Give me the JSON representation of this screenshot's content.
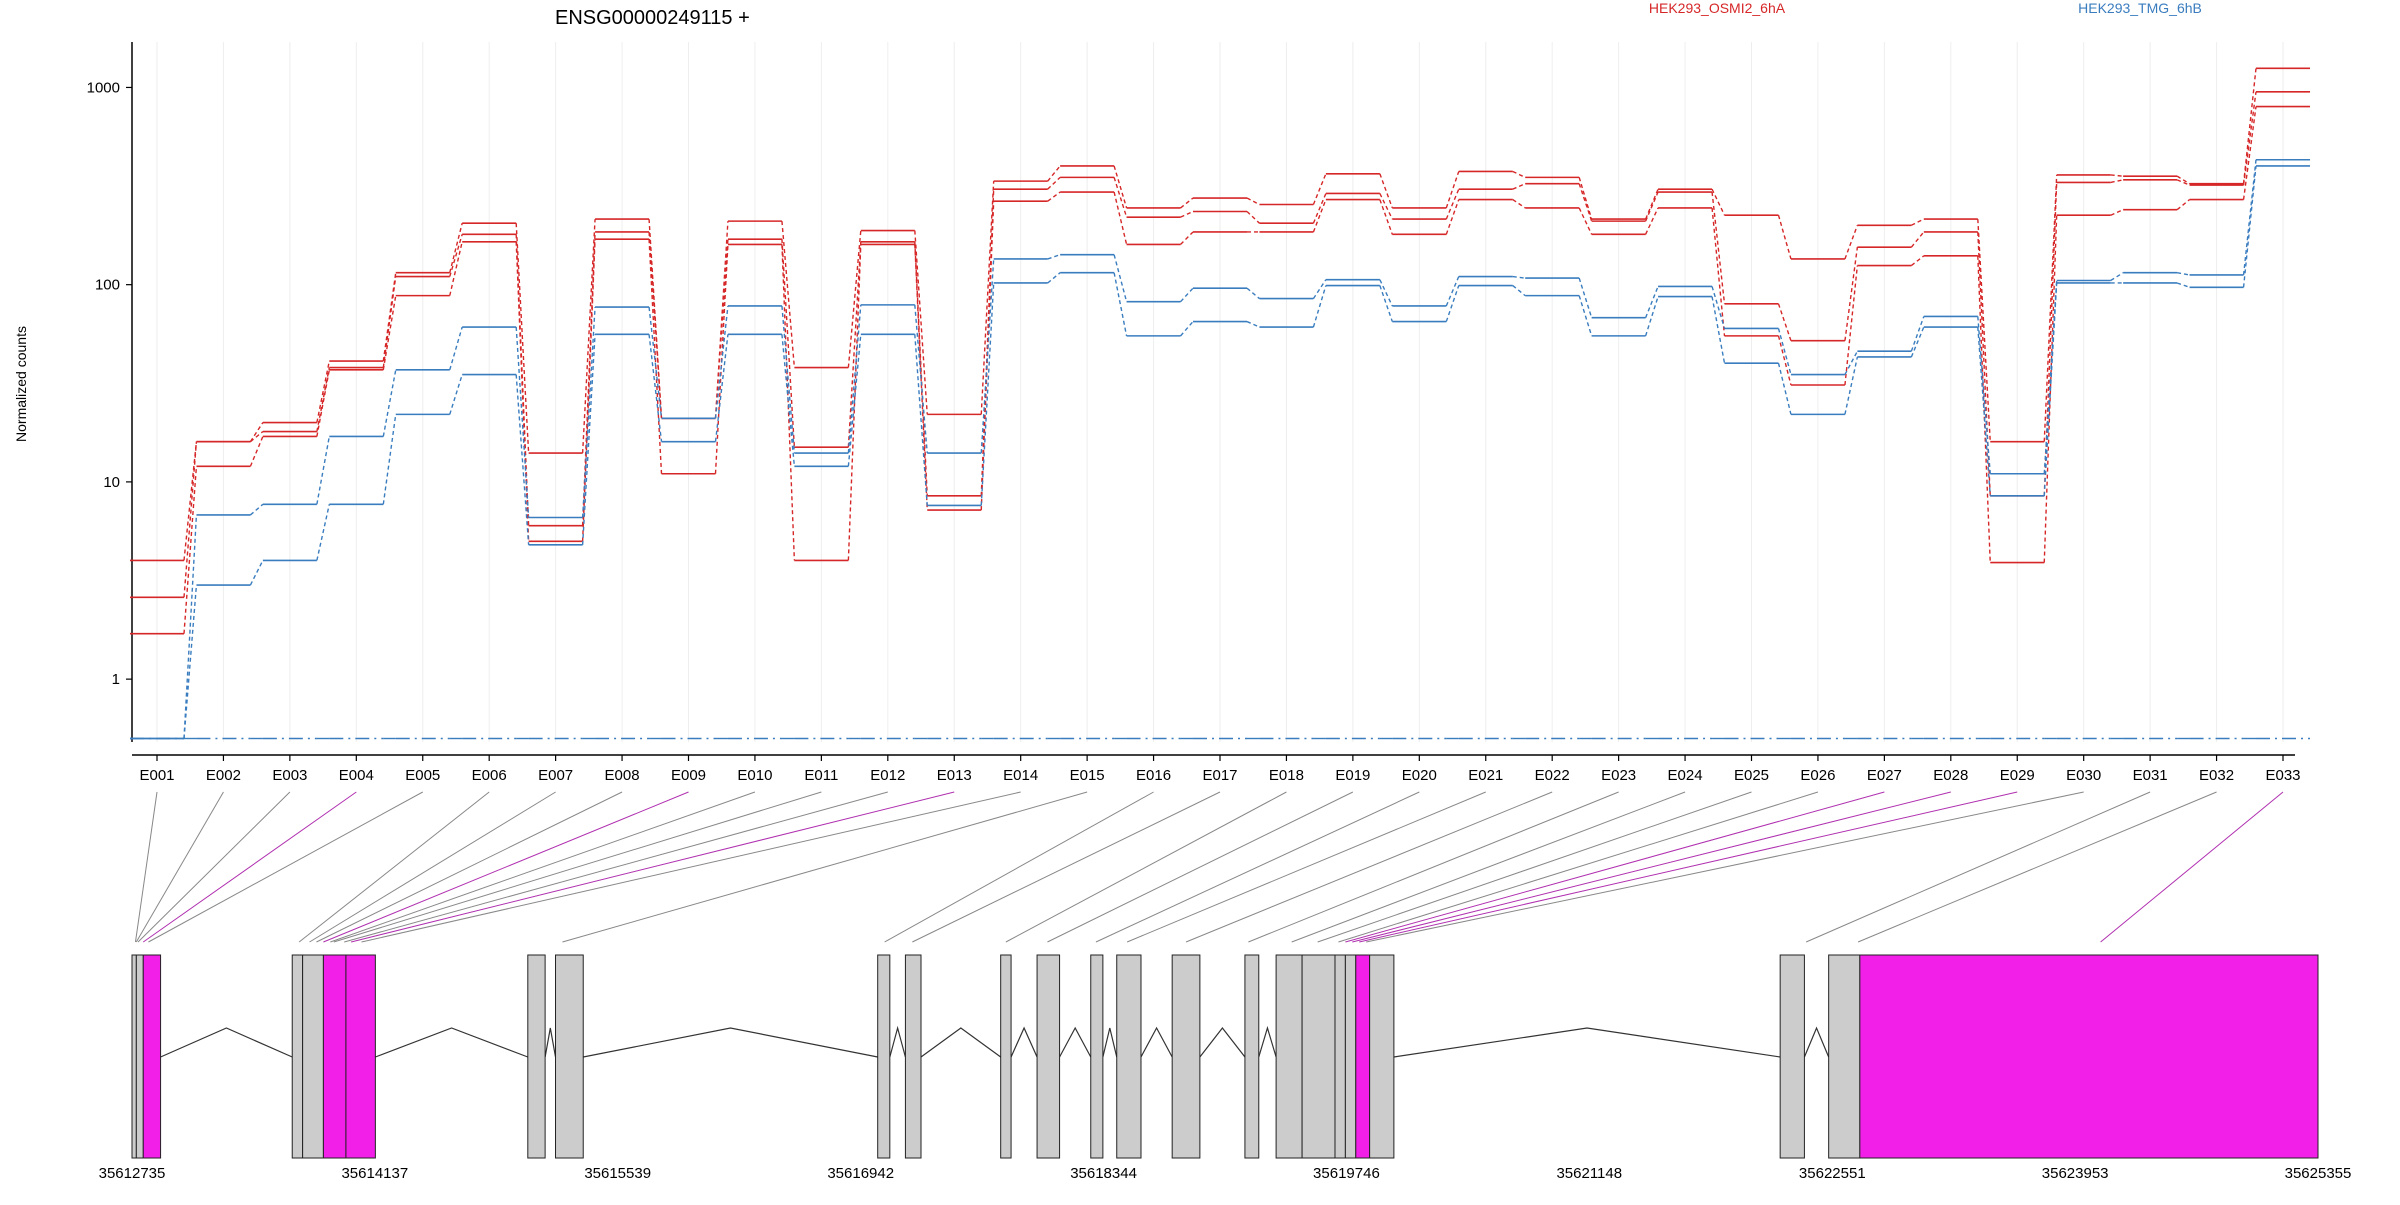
{
  "chart_data": {
    "type": "line",
    "title": "ENSG00000249115 +",
    "ylabel": "Normalized counts",
    "xlabel": "",
    "y_scale": "log",
    "ylim": [
      0.48,
      1700
    ],
    "y_ticks": [
      1,
      10,
      100,
      1000
    ],
    "y_tick_labels": [
      "1",
      "10",
      "100",
      "1000"
    ],
    "grid": "vertical",
    "legend_position": "top-right",
    "legend": [
      {
        "label": "HEK293_OSMI2_6hA",
        "color": "#d62728"
      },
      {
        "label": "HEK293_TMG_6hB",
        "color": "#3a7dbf"
      }
    ],
    "categories": [
      "E001",
      "E002",
      "E003",
      "E004",
      "E005",
      "E006",
      "E007",
      "E008",
      "E009",
      "E010",
      "E011",
      "E012",
      "E013",
      "E014",
      "E015",
      "E016",
      "E017",
      "E018",
      "E019",
      "E020",
      "E021",
      "E022",
      "E023",
      "E024",
      "E025",
      "E026",
      "E027",
      "E028",
      "E029",
      "E030",
      "E031",
      "E032",
      "E033"
    ],
    "series": [
      {
        "group": "HEK293_OSMI2_6hA",
        "color": "#d62728",
        "values": [
          4.0,
          16,
          20,
          41,
          115,
          205,
          14,
          215,
          21,
          210,
          38,
          188,
          22,
          335,
          400,
          245,
          275,
          255,
          365,
          245,
          375,
          350,
          215,
          305,
          225,
          135,
          200,
          215,
          16,
          360,
          355,
          325,
          1250
        ]
      },
      {
        "group": "HEK293_OSMI2_6hA",
        "color": "#d62728",
        "values": [
          2.6,
          16,
          18,
          38,
          110,
          180,
          6,
          185,
          21,
          170,
          15,
          165,
          8.5,
          305,
          350,
          220,
          235,
          205,
          290,
          215,
          305,
          325,
          210,
          295,
          80,
          52,
          155,
          185,
          8.5,
          330,
          340,
          320,
          950
        ]
      },
      {
        "group": "HEK293_OSMI2_6hA",
        "color": "#d62728",
        "values": [
          1.7,
          12,
          17,
          37,
          88,
          165,
          5,
          170,
          11,
          160,
          4,
          160,
          7.2,
          265,
          295,
          160,
          185,
          185,
          270,
          180,
          270,
          245,
          180,
          245,
          55,
          31,
          125,
          140,
          3.9,
          225,
          240,
          270,
          800
        ]
      },
      {
        "group": "HEK293_TMG_6hB",
        "color": "#3a7dbf",
        "values": [
          0.5,
          6.8,
          7.7,
          17,
          37,
          61,
          6.6,
          77,
          21,
          78,
          14,
          79,
          14,
          135,
          142,
          82,
          96,
          85,
          106,
          78,
          110,
          108,
          68,
          98,
          60,
          35,
          46,
          69,
          11,
          105,
          115,
          112,
          430
        ]
      },
      {
        "group": "HEK293_TMG_6hB",
        "color": "#3a7dbf",
        "values": [
          0.5,
          3.0,
          4.0,
          7.7,
          22,
          35,
          4.8,
          56,
          16,
          56,
          12,
          56,
          7.6,
          102,
          115,
          55,
          65,
          61,
          99,
          65,
          99,
          88,
          55,
          87,
          40,
          22,
          43,
          61,
          8.5,
          102,
          102,
          97,
          400
        ]
      },
      {
        "group": "HEK293_TMG_6hB",
        "color": "#3a7dbf",
        "style": "dashdot",
        "values": [
          0.5,
          0.5,
          0.5,
          0.5,
          0.5,
          0.5,
          0.5,
          0.5,
          0.5,
          0.5,
          0.5,
          0.5,
          0.5,
          0.5,
          0.5,
          0.5,
          0.5,
          0.5,
          0.5,
          0.5,
          0.5,
          0.5,
          0.5,
          0.5,
          0.5,
          0.5,
          0.5,
          0.5,
          0.5,
          0.5,
          0.5,
          0.5,
          0.5
        ]
      }
    ],
    "gene_model": {
      "range": [
        35612735,
        35625355
      ],
      "tick_values": [
        35612735,
        35614137,
        35615539,
        35616942,
        35618344,
        35619746,
        35621148,
        35622551,
        35623953,
        35625355
      ],
      "tick_labels": [
        "35612735",
        "35614137",
        "35615539",
        "35616942",
        "35618344",
        "35619746",
        "35621148",
        "35622551",
        "35623953",
        "35625355"
      ],
      "exons": [
        [
          35612735,
          35612760
        ],
        [
          35612760,
          35612800
        ],
        [
          35612800,
          35612900
        ],
        [
          35613660,
          35613720
        ],
        [
          35613720,
          35613840
        ],
        [
          35613840,
          35613970
        ],
        [
          35613970,
          35614140
        ],
        [
          35615020,
          35615120
        ],
        [
          35615180,
          35615340
        ],
        [
          35617040,
          35617110
        ],
        [
          35617200,
          35617290
        ],
        [
          35617750,
          35617810
        ],
        [
          35617960,
          35618090
        ],
        [
          35618270,
          35618340
        ],
        [
          35618420,
          35618560
        ],
        [
          35618740,
          35618900
        ],
        [
          35619160,
          35619240
        ],
        [
          35619340,
          35619490
        ],
        [
          35619490,
          35619680
        ],
        [
          35619680,
          35619740
        ],
        [
          35619740,
          35619800
        ],
        [
          35619800,
          35619880
        ],
        [
          35619880,
          35620020
        ],
        [
          35622250,
          35622390
        ],
        [
          35622530,
          35622710
        ],
        [
          35622710,
          35625355
        ]
      ],
      "exon_types": [
        "grey",
        "grey",
        "magenta",
        "grey",
        "grey",
        "magenta",
        "magenta",
        "grey",
        "grey",
        "grey",
        "grey",
        "grey",
        "grey",
        "grey",
        "grey",
        "grey",
        "grey",
        "grey",
        "grey",
        "grey",
        "grey",
        "magenta",
        "grey",
        "grey",
        "grey",
        "magenta"
      ],
      "exon_positions": [
        35612755,
        35612760,
        35612770,
        35612800,
        35612830,
        35613700,
        35613760,
        35613800,
        35613840,
        35613880,
        35613900,
        35613960,
        35614000,
        35614060,
        35615220,
        35617080,
        35617240,
        35617780,
        35618020,
        35618300,
        35618480,
        35618820,
        35619180,
        35619430,
        35619580,
        35619700,
        35619740,
        35619780,
        35619820,
        35619860,
        35622400,
        35622700,
        35624100
      ],
      "exon_link_types": [
        "grey",
        "grey",
        "grey",
        "magenta",
        "grey",
        "grey",
        "grey",
        "grey",
        "magenta",
        "grey",
        "grey",
        "grey",
        "magenta",
        "grey",
        "grey",
        "grey",
        "grey",
        "grey",
        "grey",
        "grey",
        "grey",
        "grey",
        "grey",
        "grey",
        "grey",
        "grey",
        "magenta",
        "magenta",
        "magenta",
        "grey",
        "grey",
        "grey",
        "magenta"
      ]
    }
  }
}
